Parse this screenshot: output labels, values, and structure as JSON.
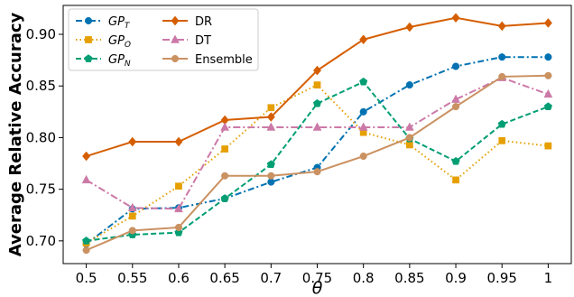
{
  "chart_data": {
    "type": "line",
    "xlabel": "θ",
    "ylabel": "Average Relative Accuracy",
    "x": [
      "0.5",
      "0.55",
      "0.6",
      "0.65",
      "0.7",
      "0.75",
      "0.8",
      "0.85",
      "0.9",
      "0.95",
      "1"
    ],
    "xlim": [
      0.475,
      1.025
    ],
    "ylim": [
      0.678,
      0.928
    ],
    "yticks": [
      "0.70",
      "0.75",
      "0.80",
      "0.85",
      "0.90"
    ],
    "grid": false,
    "legend_position": "top-left",
    "series": [
      {
        "name": "GP",
        "sub": "T",
        "color": "#0072b2",
        "marker": "circle",
        "dash": "dashdot",
        "values": [
          0.697,
          0.731,
          0.732,
          0.741,
          0.757,
          0.771,
          0.825,
          0.851,
          0.869,
          0.878,
          0.878
        ]
      },
      {
        "name": "GP",
        "sub": "O",
        "color": "#e69f00",
        "marker": "square",
        "dash": "dot",
        "values": [
          0.698,
          0.724,
          0.753,
          0.789,
          0.829,
          0.851,
          0.805,
          0.793,
          0.759,
          0.797,
          0.792
        ]
      },
      {
        "name": "GP",
        "sub": "N",
        "color": "#009e73",
        "marker": "pentagon",
        "dash": "dash",
        "values": [
          0.7,
          0.706,
          0.708,
          0.741,
          0.774,
          0.833,
          0.854,
          0.799,
          0.777,
          0.813,
          0.83
        ]
      },
      {
        "name": "DR",
        "sub": "",
        "color": "#d55e00",
        "marker": "diamond",
        "dash": "solid",
        "values": [
          0.782,
          0.796,
          0.796,
          0.817,
          0.82,
          0.865,
          0.895,
          0.907,
          0.916,
          0.908,
          0.911
        ]
      },
      {
        "name": "DT",
        "sub": "",
        "color": "#cc79a7",
        "marker": "triangle",
        "dash": "dashdot2",
        "values": [
          0.759,
          0.732,
          0.731,
          0.81,
          0.81,
          0.81,
          0.81,
          0.81,
          0.837,
          0.858,
          0.842
        ]
      },
      {
        "name": "Ensemble",
        "sub": "",
        "color": "#ca9161",
        "marker": "circle",
        "dash": "solid",
        "values": [
          0.691,
          0.71,
          0.713,
          0.763,
          0.763,
          0.767,
          0.782,
          0.8,
          0.83,
          0.859,
          0.86
        ]
      }
    ]
  }
}
